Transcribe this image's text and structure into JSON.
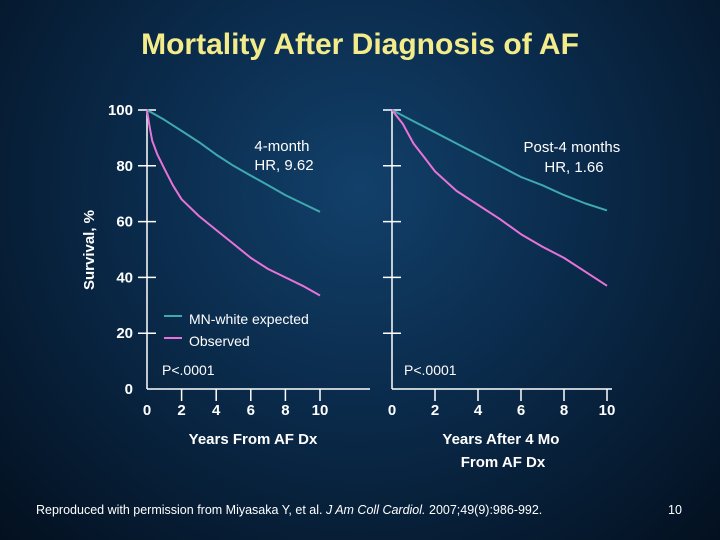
{
  "slide": {
    "title": "Mortality After Diagnosis of AF",
    "citation_prefix": "Reproduced with permission from Miyasaka Y, et al. ",
    "citation_journal": "J Am Coll Cardiol.",
    "citation_suffix": " 2007;49(9):986-992.",
    "page_number": "10"
  },
  "colors": {
    "expected": "#3fa9b0",
    "observed": "#e873d8",
    "axis": "#ffffff",
    "title": "#f4ec8a"
  },
  "chart_data": [
    {
      "type": "line",
      "title": "",
      "xlabel": "Years From AF Dx",
      "ylabel": "Survival, %",
      "xlim": [
        0,
        10
      ],
      "ylim": [
        0,
        100
      ],
      "xticks": [
        "0",
        "2",
        "4",
        "6",
        "8",
        "10"
      ],
      "yticks": [
        "0",
        "20",
        "40",
        "60",
        "80",
        "100"
      ],
      "annotation": "4-month\nHR, 9.62",
      "pvalue": "P<.0001",
      "legend": [
        {
          "name": "MN-white expected",
          "color_key": "expected"
        },
        {
          "name": "Observed",
          "color_key": "observed"
        }
      ],
      "series": [
        {
          "name": "MN-white expected",
          "color_key": "expected",
          "x": [
            0,
            1,
            2,
            3,
            4,
            5,
            6,
            7,
            8,
            9,
            10
          ],
          "values": [
            100,
            96.5,
            92.5,
            88.5,
            84,
            80,
            76.5,
            73,
            69.5,
            66.5,
            63.5
          ]
        },
        {
          "name": "Observed",
          "color_key": "observed",
          "x": [
            0,
            0.15,
            0.3,
            0.6,
            1,
            1.5,
            2,
            3,
            4,
            5,
            6,
            7,
            8,
            9,
            10
          ],
          "values": [
            100,
            94,
            89,
            84,
            79,
            73,
            68,
            62,
            57,
            52,
            47,
            43,
            40,
            37,
            33.5
          ]
        }
      ]
    },
    {
      "type": "line",
      "title": "",
      "xlabel": "Years After 4 Mo\nFrom AF Dx",
      "ylabel": "",
      "xlim": [
        0,
        10
      ],
      "ylim": [
        0,
        100
      ],
      "xticks": [
        "0",
        "2",
        "4",
        "6",
        "8",
        "10"
      ],
      "yticks": [],
      "annotation": "Post-4 months\nHR, 1.66",
      "pvalue": "P<.0001",
      "series": [
        {
          "name": "MN-white expected",
          "color_key": "expected",
          "x": [
            0,
            1,
            2,
            3,
            4,
            5,
            6,
            7,
            8,
            9,
            10
          ],
          "values": [
            100,
            96,
            92,
            88,
            84,
            80,
            76,
            73,
            69.5,
            66.5,
            64
          ]
        },
        {
          "name": "Observed",
          "color_key": "observed",
          "x": [
            0,
            0.5,
            1,
            1.5,
            2,
            3,
            4,
            5,
            6,
            7,
            8,
            9,
            10
          ],
          "values": [
            100,
            95,
            88,
            83,
            78,
            71,
            66,
            61,
            55.5,
            51,
            47,
            42,
            37
          ]
        }
      ]
    }
  ]
}
